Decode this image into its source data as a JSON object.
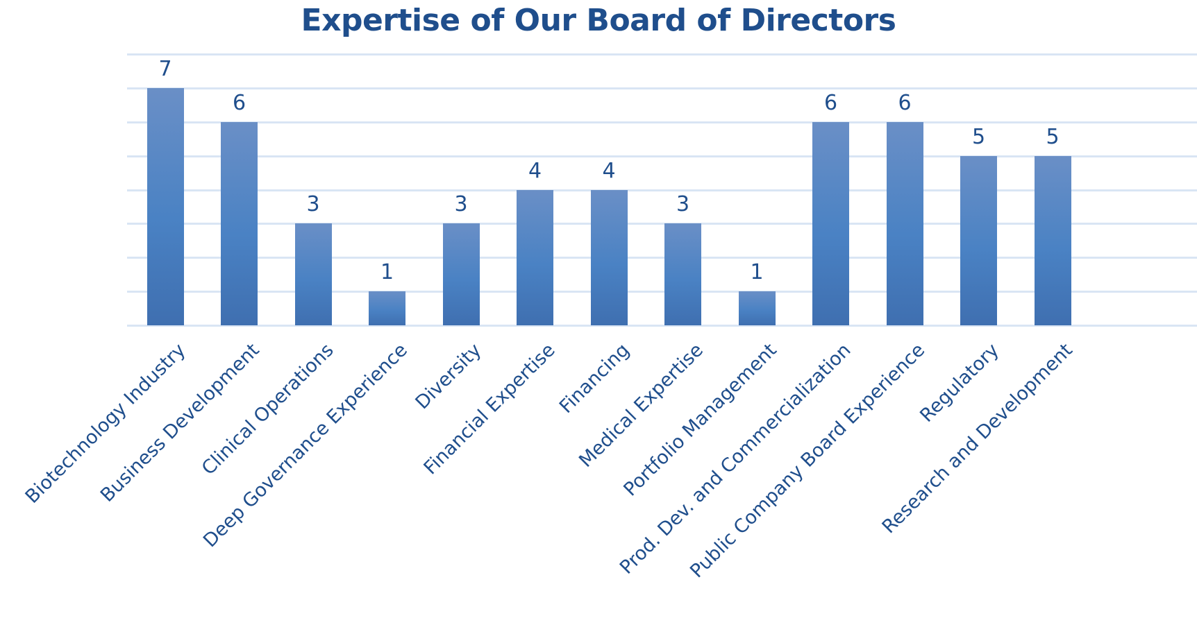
{
  "chart_data": {
    "type": "bar",
    "title": "Expertise of Our Board of Directors",
    "xlabel": "",
    "ylabel": "",
    "ylim": [
      0,
      8
    ],
    "grid": true,
    "gridlines": [
      0,
      1,
      2,
      3,
      4,
      5,
      6,
      7,
      8
    ],
    "legend": null,
    "y_tick_labels_visible": false,
    "data_labels": true,
    "categories": [
      "Biotechnology Industry",
      "Business Development",
      "Clinical Operations",
      "Deep Governance Experience",
      "Diversity",
      "Financial Expertise",
      "Financing",
      "Medical Expertise",
      "Portfolio Management",
      "Prod. Dev. and Commercialization",
      "Public Company Board Experience",
      "Regulatory",
      "Research and Development"
    ],
    "values": [
      7,
      6,
      3,
      1,
      3,
      4,
      4,
      3,
      1,
      6,
      6,
      5,
      5
    ]
  },
  "colors": {
    "title": "#1f4e8c",
    "text": "#1f4e8c",
    "bar_top": "#6a8fc6",
    "bar_mid": "#4a82c4",
    "bar_bottom": "#3f6fb0",
    "gridline": "#d9e5f4"
  }
}
